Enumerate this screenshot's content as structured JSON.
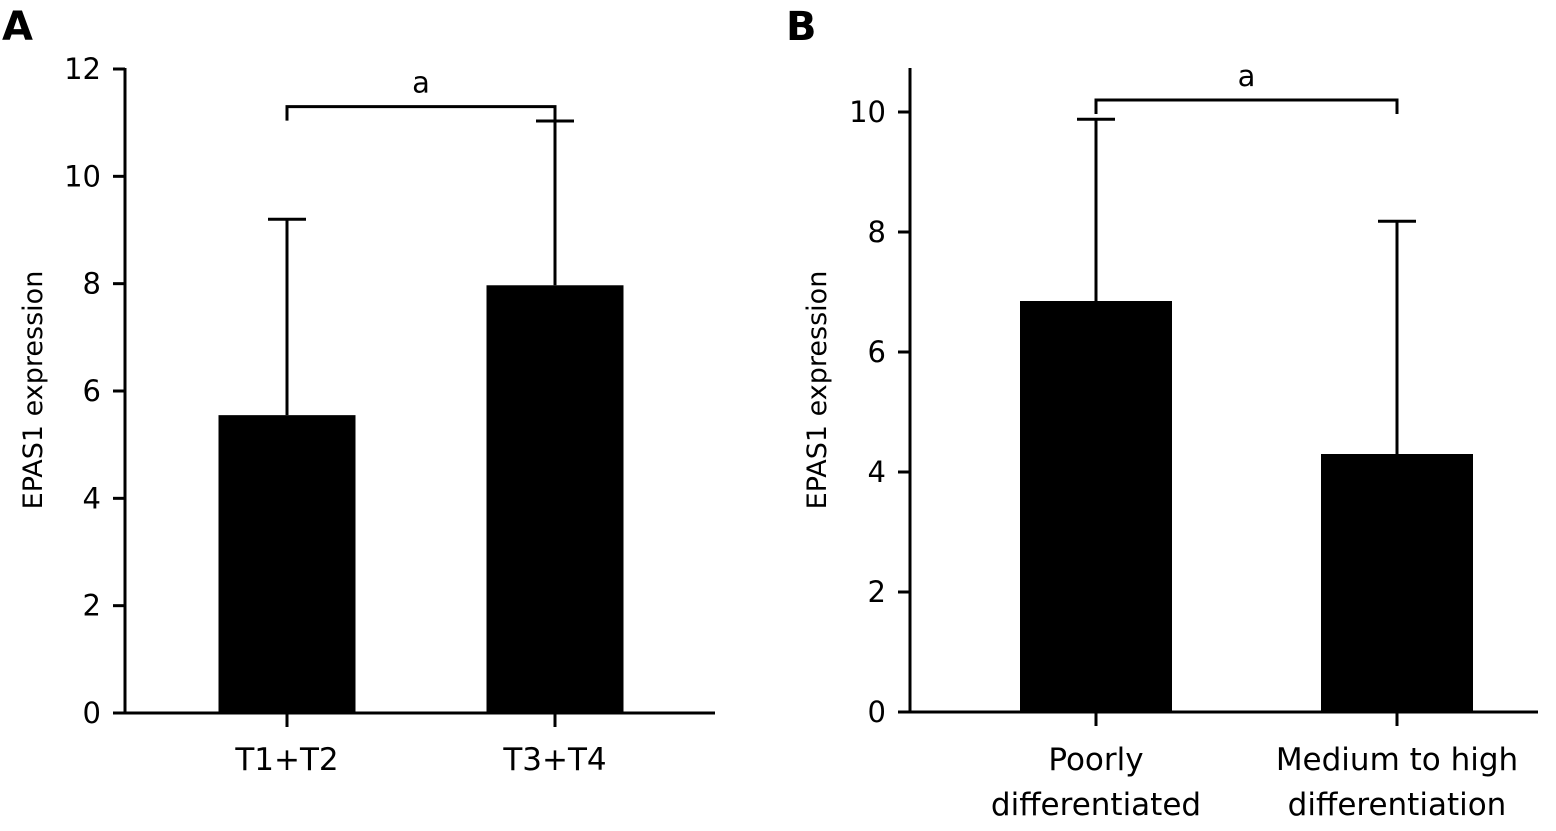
{
  "chart_data": [
    {
      "panel": "A",
      "type": "bar",
      "ylabel": "EPAS1 expression",
      "xlabel": "",
      "ylim": [
        0,
        12
      ],
      "yticks": [
        "0",
        "2",
        "4",
        "6",
        "8",
        "10",
        "12"
      ],
      "categories": [
        [
          "T1+T2"
        ],
        [
          "T3+T4"
        ]
      ],
      "values": [
        5.55,
        7.97
      ],
      "error_upper": [
        9.2,
        11.03
      ],
      "significance": {
        "label": "a",
        "between": [
          0,
          1
        ],
        "y": 11.3
      },
      "colors": {
        "bar": "#000000"
      }
    },
    {
      "panel": "B",
      "type": "bar",
      "ylabel": "EPAS1 expression",
      "xlabel": "",
      "ylim": [
        0,
        10.7
      ],
      "yticks": [
        "0",
        "2",
        "4",
        "6",
        "8",
        "10"
      ],
      "categories": [
        [
          "Poorly",
          "differentiated"
        ],
        [
          "Medium to high",
          "differentiation"
        ]
      ],
      "values": [
        6.85,
        4.3
      ],
      "error_upper": [
        9.88,
        8.18
      ],
      "significance": {
        "label": "a",
        "between": [
          0,
          1
        ],
        "y": 10.2
      },
      "colors": {
        "bar": "#000000"
      }
    }
  ]
}
